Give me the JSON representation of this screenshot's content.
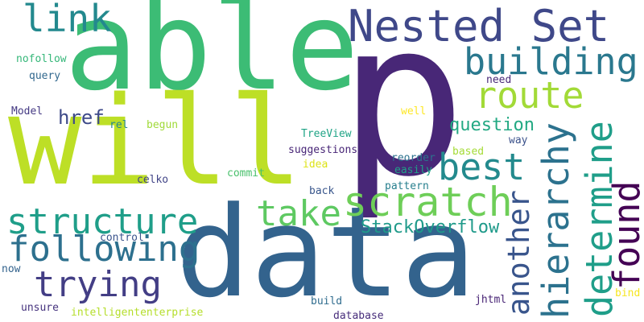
{
  "words": [
    {
      "text": "able",
      "color": "#3cbc75"
    },
    {
      "text": "p",
      "color": "#482777"
    },
    {
      "text": "will",
      "color": "#bddf26"
    },
    {
      "text": "data",
      "color": "#33638d"
    },
    {
      "text": "Nested Set",
      "color": "#3f4889"
    },
    {
      "text": "link",
      "color": "#23898e"
    },
    {
      "text": "building",
      "color": "#2a788e"
    },
    {
      "text": "route",
      "color": "#a2da37"
    },
    {
      "text": "best",
      "color": "#238a8d"
    },
    {
      "text": "hierarchy",
      "color": "#2c728e"
    },
    {
      "text": "determine",
      "color": "#1f9e89"
    },
    {
      "text": "found",
      "color": "#440154"
    },
    {
      "text": "another",
      "color": "#39558c"
    },
    {
      "text": "question",
      "color": "#23a983"
    },
    {
      "text": "href",
      "color": "#3e4a89"
    },
    {
      "text": "scratch",
      "color": "#6ece58"
    },
    {
      "text": "take",
      "color": "#5ec962"
    },
    {
      "text": "structure",
      "color": "#1f9e89"
    },
    {
      "text": "following",
      "color": "#2d708e"
    },
    {
      "text": "trying",
      "color": "#433e85"
    },
    {
      "text": "StackOverflow",
      "color": "#1f9a8a"
    },
    {
      "text": "nofollow",
      "color": "#35b779"
    },
    {
      "text": "query",
      "color": "#31688e"
    },
    {
      "text": "need",
      "color": "#482878"
    },
    {
      "text": "well",
      "color": "#fde725"
    },
    {
      "text": "Model",
      "color": "#443983"
    },
    {
      "text": "rel",
      "color": "#25858e"
    },
    {
      "text": "begun",
      "color": "#a0da39"
    },
    {
      "text": "TreeView",
      "color": "#20a486"
    },
    {
      "text": "way",
      "color": "#3b528b"
    },
    {
      "text": "suggestions",
      "color": "#482677"
    },
    {
      "text": "idea",
      "color": "#dde318"
    },
    {
      "text": "reorder",
      "color": "#2c728e"
    },
    {
      "text": "based",
      "color": "#a5db36"
    },
    {
      "text": "easily",
      "color": "#1fa187"
    },
    {
      "text": "celko",
      "color": "#414487"
    },
    {
      "text": "commit",
      "color": "#4ac16d"
    },
    {
      "text": "pattern",
      "color": "#277f8e"
    },
    {
      "text": "back",
      "color": "#39568c"
    },
    {
      "text": "control",
      "color": "#3a548c"
    },
    {
      "text": "now",
      "color": "#33638d"
    },
    {
      "text": "unsure",
      "color": "#46337e"
    },
    {
      "text": "intelligententerprise",
      "color": "#b5de2b"
    },
    {
      "text": "build",
      "color": "#2f6c8e"
    },
    {
      "text": "database",
      "color": "#472d7b"
    },
    {
      "text": "jhtml",
      "color": "#482475"
    },
    {
      "text": "bind",
      "color": "#f6e620"
    }
  ]
}
